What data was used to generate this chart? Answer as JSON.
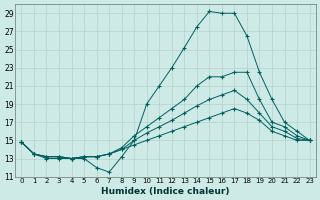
{
  "xlabel": "Humidex (Indice chaleur)",
  "bg_color": "#ceeae6",
  "grid_color": "#b0c8c4",
  "line_color": "#005f5f",
  "xlim": [
    -0.5,
    23.5
  ],
  "ylim": [
    11,
    30
  ],
  "yticks": [
    11,
    13,
    15,
    17,
    19,
    21,
    23,
    25,
    27,
    29
  ],
  "xticks": [
    0,
    1,
    2,
    3,
    4,
    5,
    6,
    7,
    8,
    9,
    10,
    11,
    12,
    13,
    14,
    15,
    16,
    17,
    18,
    19,
    20,
    21,
    22,
    23
  ],
  "series": [
    [
      14.8,
      13.5,
      13.0,
      13.0,
      13.0,
      13.0,
      12.0,
      11.5,
      13.2,
      15.0,
      19.0,
      21.0,
      23.0,
      25.2,
      27.5,
      29.2,
      29.0,
      29.0,
      26.5,
      22.5,
      19.5,
      17.0,
      16.0,
      15.0
    ],
    [
      14.8,
      13.5,
      13.2,
      13.2,
      13.0,
      13.2,
      13.2,
      13.5,
      14.2,
      15.5,
      16.5,
      17.5,
      18.5,
      19.5,
      21.0,
      22.0,
      22.0,
      22.5,
      22.5,
      19.5,
      17.0,
      16.5,
      15.5,
      15.0
    ],
    [
      14.8,
      13.5,
      13.2,
      13.2,
      13.0,
      13.2,
      13.2,
      13.5,
      14.0,
      15.0,
      15.8,
      16.5,
      17.2,
      18.0,
      18.8,
      19.5,
      20.0,
      20.5,
      19.5,
      18.0,
      16.5,
      16.0,
      15.2,
      15.0
    ],
    [
      14.8,
      13.5,
      13.2,
      13.2,
      13.0,
      13.2,
      13.2,
      13.5,
      14.0,
      14.5,
      15.0,
      15.5,
      16.0,
      16.5,
      17.0,
      17.5,
      18.0,
      18.5,
      18.0,
      17.2,
      16.0,
      15.5,
      15.0,
      15.0
    ]
  ]
}
